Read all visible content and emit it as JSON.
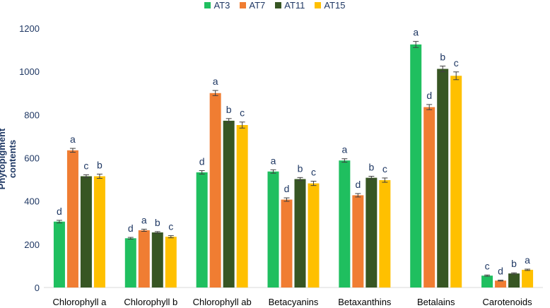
{
  "chart_data": {
    "type": "bar",
    "title": "",
    "xlabel": "",
    "ylabel": "Phytopigment contents",
    "ylim": [
      0,
      1200
    ],
    "yticks": [
      0,
      200,
      400,
      600,
      800,
      1000,
      1200
    ],
    "grid": false,
    "legend_position": "top-center",
    "categories": [
      "Chlorophyll a",
      "Chlorophyll b",
      "Chlorophyll ab",
      "Betacyanins",
      "Betaxanthins",
      "Betalains",
      "Carotenoids"
    ],
    "series": [
      {
        "name": "AT3",
        "color": "#1fbf5f",
        "values": [
          305,
          228,
          533,
          537,
          588,
          1125,
          55
        ],
        "errors": [
          6,
          4,
          8,
          8,
          8,
          14,
          3
        ],
        "letters": [
          "d",
          "d",
          "d",
          "a",
          "a",
          "a",
          "c"
        ]
      },
      {
        "name": "AT7",
        "color": "#f07d32",
        "values": [
          635,
          265,
          900,
          407,
          427,
          835,
          32
        ],
        "errors": [
          9,
          5,
          12,
          8,
          8,
          12,
          2
        ],
        "letters": [
          "a",
          "a",
          "a",
          "d",
          "d",
          "d",
          "d"
        ]
      },
      {
        "name": "AT11",
        "color": "#375623",
        "values": [
          515,
          255,
          772,
          502,
          508,
          1012,
          65
        ],
        "errors": [
          7,
          4,
          10,
          7,
          7,
          13,
          3
        ],
        "letters": [
          "c",
          "b",
          "b",
          "b",
          "b",
          "b",
          "b"
        ]
      },
      {
        "name": "AT15",
        "color": "#ffc000",
        "values": [
          515,
          235,
          752,
          482,
          497,
          980,
          82
        ],
        "errors": [
          10,
          5,
          14,
          10,
          10,
          18,
          3
        ],
        "letters": [
          "b",
          "c",
          "c",
          "c",
          "c",
          "c",
          "a"
        ]
      }
    ],
    "colors": {
      "axis_text": "#1f3864",
      "tick_text": "#1f3864",
      "letter_text": "#1f3864",
      "axis_line": "#d9d9d9"
    }
  }
}
